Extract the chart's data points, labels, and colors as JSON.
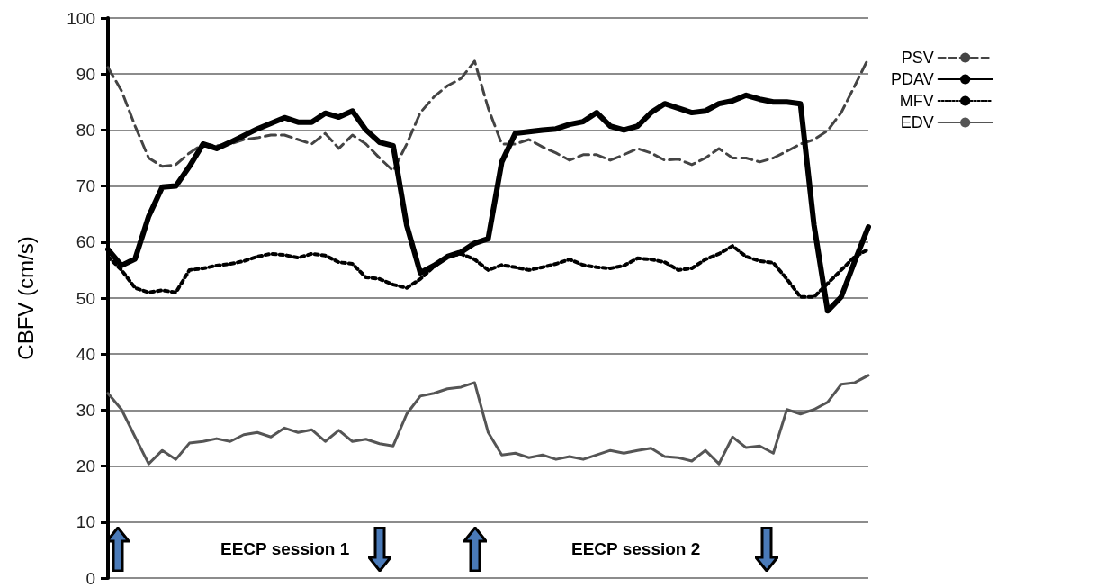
{
  "chart_data": {
    "type": "line",
    "ylabel": "CBFV (cm/s)",
    "categories": [
      null,
      null,
      null,
      null,
      null,
      null,
      null,
      null,
      null,
      null,
      null,
      null,
      null,
      null,
      null,
      null,
      null,
      null,
      null,
      null,
      null,
      null,
      null,
      null,
      null,
      null,
      null,
      null,
      null,
      null,
      null,
      null,
      null,
      null,
      null,
      null,
      null,
      null,
      null,
      null,
      null,
      null,
      null,
      null,
      null,
      null,
      null,
      null,
      null,
      null,
      null,
      null,
      null,
      null,
      null,
      null,
      null
    ],
    "series": [
      {
        "name": "PSV",
        "color": "#444444",
        "line_style": "dashed",
        "values": [
          91.2,
          87,
          80.7,
          75,
          73.5,
          73.8,
          75.9,
          77.5,
          77.2,
          77.5,
          78.3,
          78.6,
          79.1,
          79.1,
          78.3,
          77.5,
          79.4,
          76.7,
          79.1,
          77.5,
          75,
          72.7,
          77.5,
          83.1,
          85.9,
          87.9,
          89.2,
          92.3,
          83.9,
          77.5,
          77.5,
          78.3,
          77,
          75.9,
          74.6,
          75.6,
          75.6,
          74.6,
          75.6,
          76.7,
          75.9,
          74.6,
          74.8,
          73.8,
          75,
          76.7,
          75,
          75,
          74.3,
          75,
          76.2,
          77.5,
          78.3,
          79.9,
          83.1,
          87.9,
          92.8
        ]
      },
      {
        "name": "PDAV",
        "color": "#000000",
        "line_style": "solid",
        "values": [
          58.7,
          55.8,
          57,
          64.6,
          69.8,
          70,
          73.5,
          77.5,
          76.7,
          77.8,
          79,
          80.2,
          81.2,
          82.2,
          81.4,
          81.4,
          83,
          82.3,
          83.4,
          80,
          77.8,
          77.2,
          63,
          54.5,
          55.8,
          57.4,
          58.2,
          59.8,
          60.6,
          74.3,
          79.4,
          79.7,
          80,
          80.2,
          81,
          81.5,
          83.1,
          80.7,
          80,
          80.7,
          83.1,
          84.7,
          83.9,
          83.1,
          83.4,
          84.7,
          85.2,
          86.2,
          85.5,
          85,
          85,
          84.7,
          63,
          47.7,
          50.2,
          56.6,
          62.7
        ]
      },
      {
        "name": "MFV",
        "color": "#000000",
        "line_style": "dotted",
        "values": [
          57.4,
          55,
          51.8,
          51,
          51.4,
          51,
          55,
          55.3,
          55.8,
          56.1,
          56.6,
          57.4,
          57.9,
          57.7,
          57.2,
          57.9,
          57.6,
          56.4,
          56.1,
          53.7,
          53.4,
          52.4,
          51.8,
          53.4,
          55.6,
          57.4,
          57.9,
          56.9,
          55,
          55.9,
          55.5,
          55,
          55.5,
          56.1,
          56.9,
          55.9,
          55.5,
          55.3,
          55.8,
          57.1,
          56.9,
          56.4,
          55,
          55.3,
          56.9,
          57.9,
          59.3,
          57.4,
          56.6,
          56.3,
          53.4,
          50.2,
          50.2,
          52.6,
          55,
          57.4,
          58.7
        ]
      },
      {
        "name": "EDV",
        "color": "#555555",
        "line_style": "solid",
        "values": [
          33,
          30.1,
          25.2,
          20.4,
          22.8,
          21.2,
          24.1,
          24.4,
          24.9,
          24.4,
          25.6,
          26,
          25.2,
          26.8,
          26,
          26.5,
          24.4,
          26.4,
          24.4,
          24.8,
          24,
          23.6,
          29.3,
          32.5,
          33,
          33.8,
          34.1,
          34.9,
          26,
          22,
          22.3,
          21.5,
          22,
          21.2,
          21.7,
          21.2,
          22,
          22.8,
          22.3,
          22.8,
          23.2,
          21.7,
          21.5,
          20.9,
          22.8,
          20.4,
          25.2,
          23.3,
          23.6,
          22.3,
          30.1,
          29.3,
          30.1,
          31.4,
          34.6,
          34.9,
          36.2
        ]
      }
    ],
    "ylim": [
      0,
      100
    ],
    "yticks": [
      0,
      10,
      20,
      30,
      40,
      50,
      60,
      70,
      80,
      90,
      100
    ],
    "grid": "y",
    "legend": "right",
    "marker": "none",
    "annotations": [
      "EECP session 1",
      "EECP session 2"
    ]
  }
}
